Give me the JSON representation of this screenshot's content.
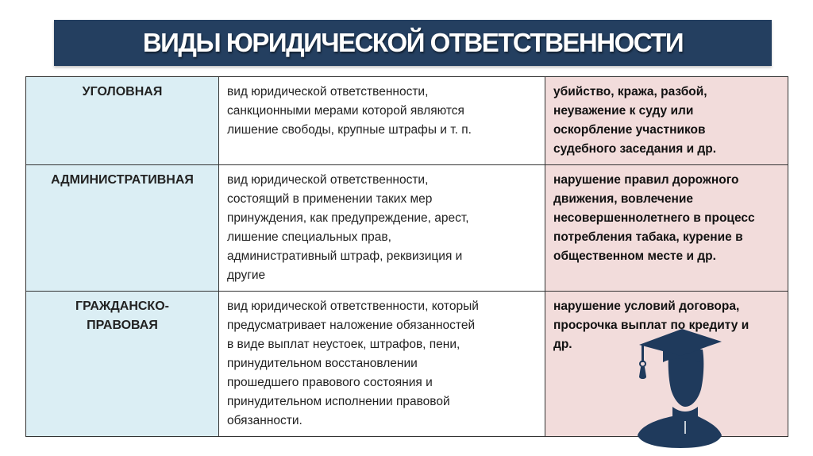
{
  "title": "ВИДЫ ЮРИДИЧЕСКОЙ ОТВЕТСТВЕННОСТИ",
  "colors": {
    "title_bg": "#243f60",
    "kind_bg": "#dbeef4",
    "example_bg": "#f2dcdb",
    "icon": "#1f3a5c"
  },
  "rows": [
    {
      "kind": [
        "УГОЛОВНАЯ"
      ],
      "definition": [
        "вид юридической ответственности,",
        "санкционными мерами которой являются",
        "лишение свободы, крупные штрафы и т. п."
      ],
      "examples": [
        "убийство, кража, разбой,",
        "неуважение к суду или",
        "оскорбление участников",
        "судебного заседания и др."
      ]
    },
    {
      "kind": [
        "АДМИНИСТРАТИВНАЯ"
      ],
      "definition": [
        "вид юридической ответственности,",
        "состоящий в применении таких мер",
        "принуждения, как предупреждение, арест,",
        "лишение специальных прав,",
        "административный штраф, реквизиция и",
        "другие"
      ],
      "examples": [
        "нарушение правил дорожного",
        "движения, вовлечение",
        "несовершеннолетнего в процесс",
        "потребления табака, курение в",
        "общественном месте и др."
      ]
    },
    {
      "kind": [
        "ГРАЖДАНСКО-",
        "ПРАВОВАЯ"
      ],
      "definition": [
        "вид юридической ответственности, который",
        "предусматривает наложение обязанностей",
        "в виде выплат неустоек, штрафов, пени,",
        "принудительном восстановлении",
        "прошедшего правового состояния и",
        "принудительном исполнении правовой",
        "обязанности."
      ],
      "examples": [
        "нарушение условий договора,",
        "просрочка выплат по кредиту и",
        "др."
      ]
    }
  ],
  "icon": "graduate-silhouette-icon"
}
